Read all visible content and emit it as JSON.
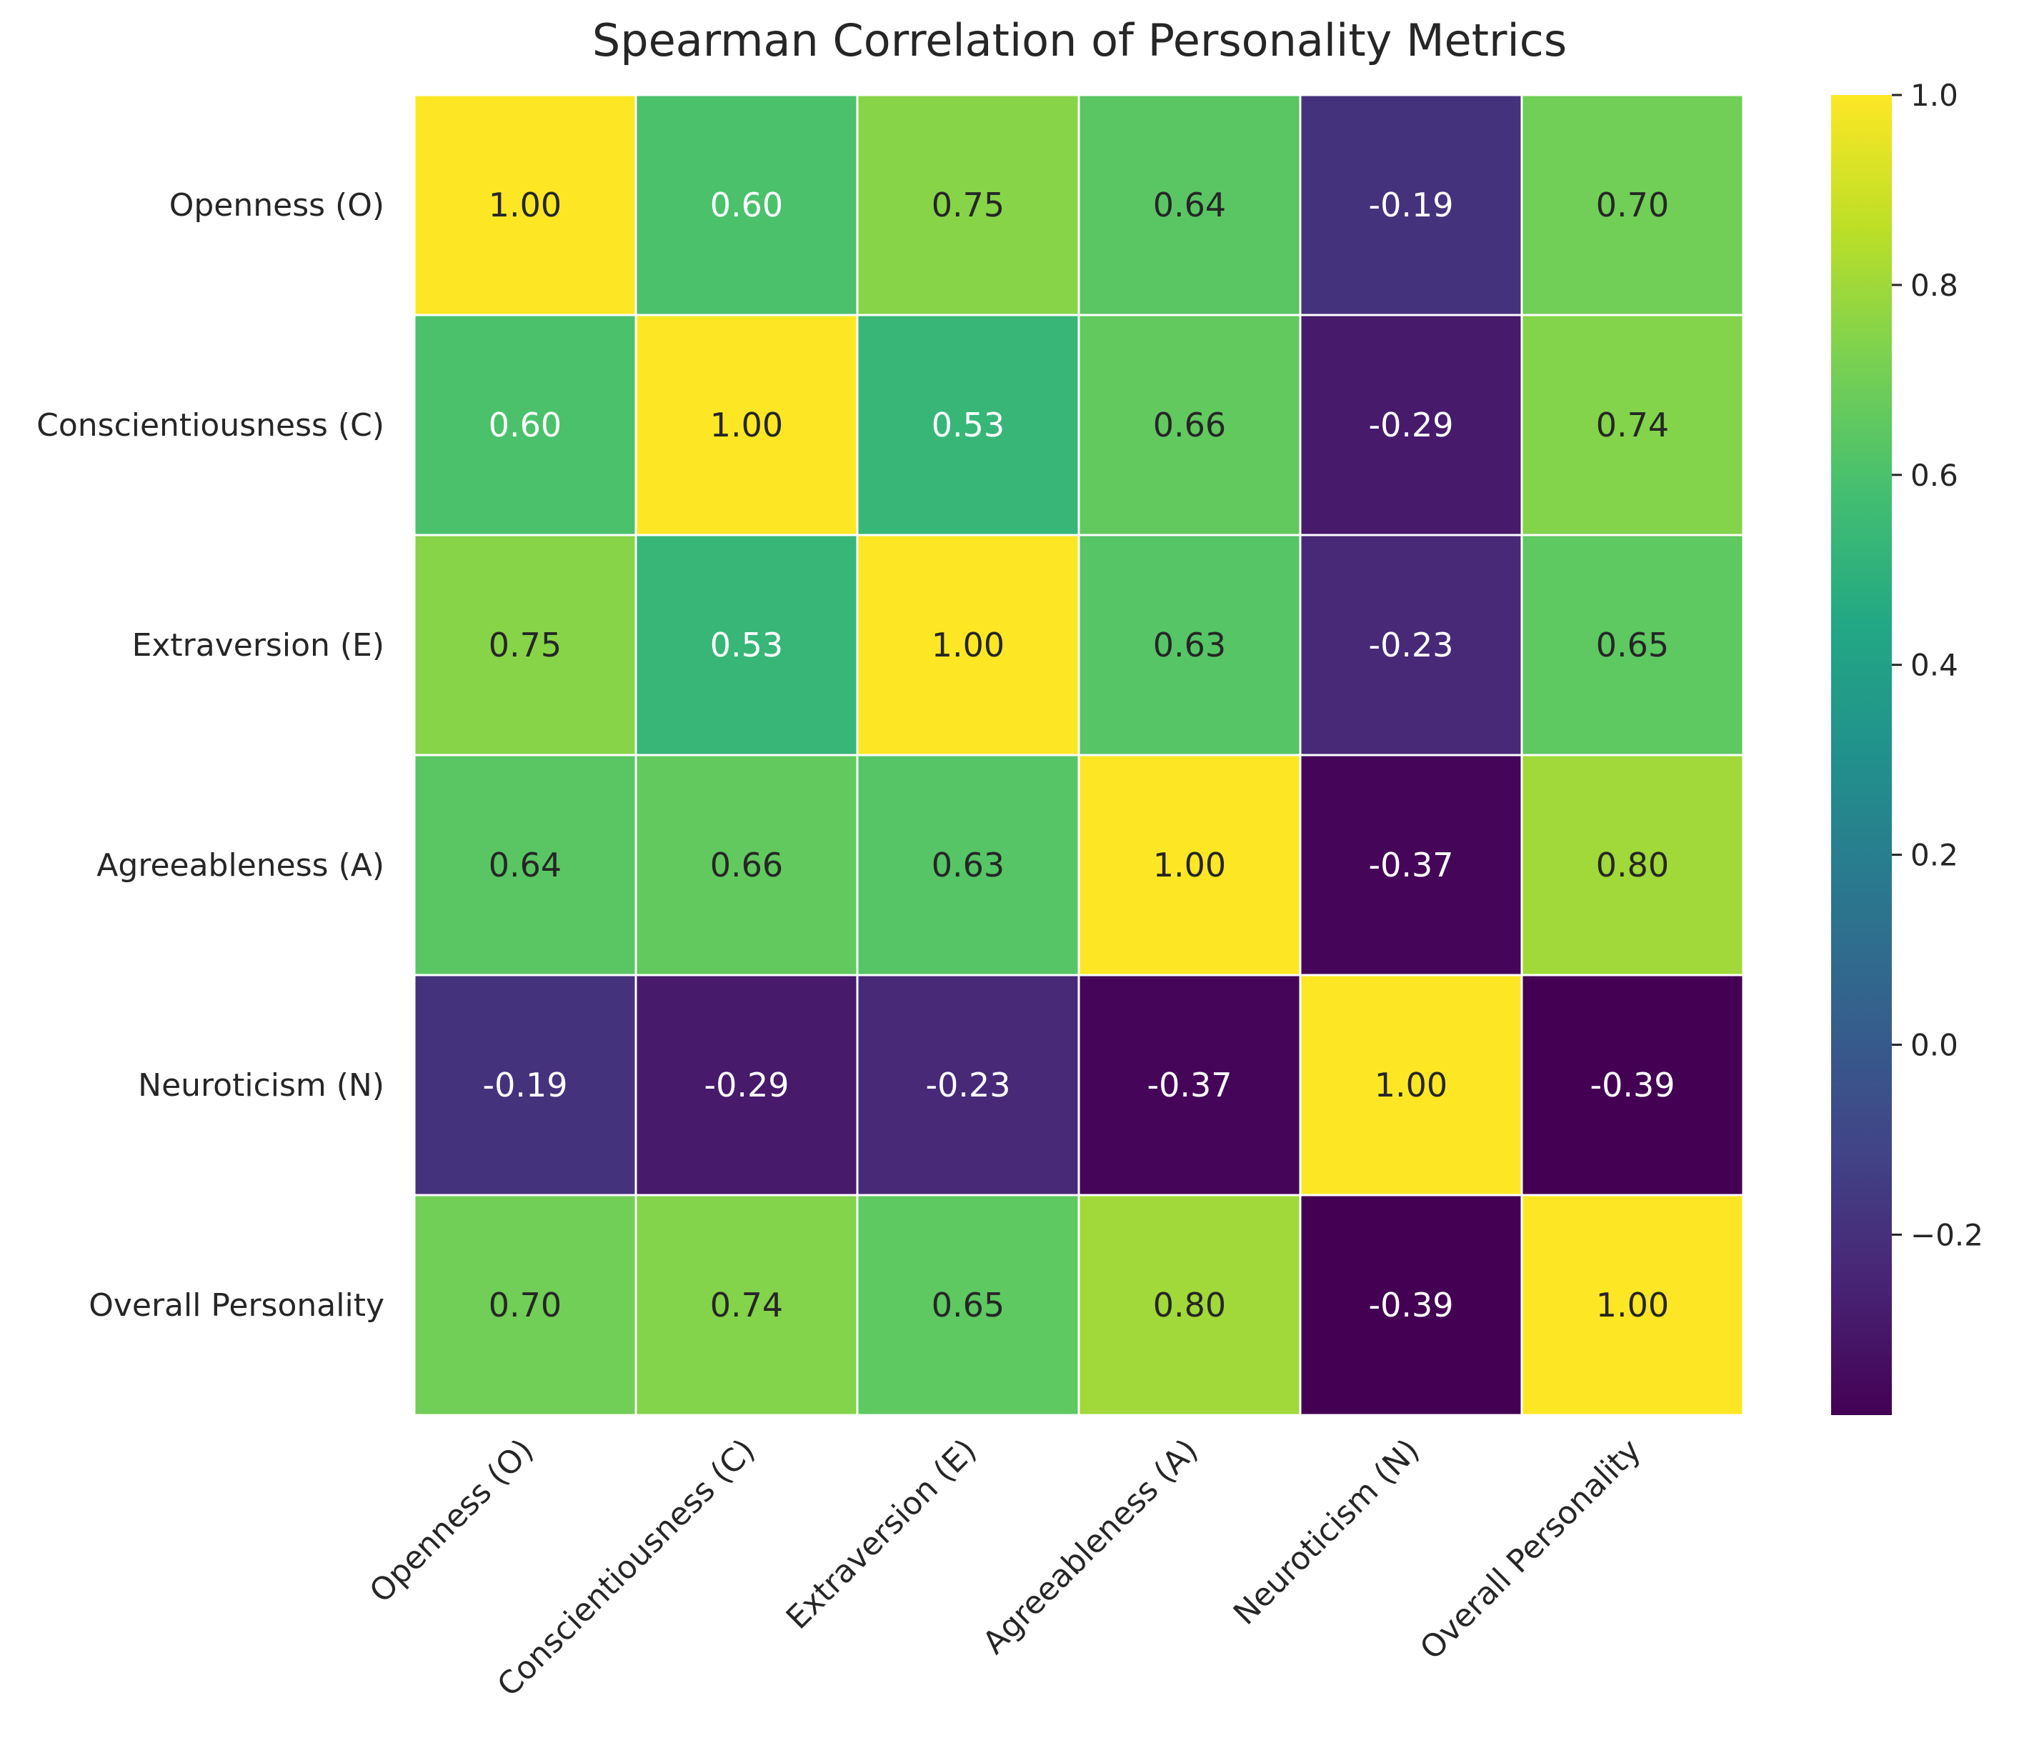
{
  "chart_data": {
    "type": "heatmap",
    "title": "Spearman Correlation of Personality Metrics",
    "xlabel": "",
    "ylabel": "",
    "row_labels": [
      "Openness (O)",
      "Conscientiousness (C)",
      "Extraversion (E)",
      "Agreeableness (A)",
      "Neuroticism (N)",
      "Overall Personality"
    ],
    "col_labels": [
      "Openness (O)",
      "Conscientiousness (C)",
      "Extraversion (E)",
      "Agreeableness (A)",
      "Neuroticism (N)",
      "Overall Personality"
    ],
    "values": [
      [
        1.0,
        0.6,
        0.75,
        0.64,
        -0.19,
        0.7
      ],
      [
        0.6,
        1.0,
        0.53,
        0.66,
        -0.29,
        0.74
      ],
      [
        0.75,
        0.53,
        1.0,
        0.63,
        -0.23,
        0.65
      ],
      [
        0.64,
        0.66,
        0.63,
        1.0,
        -0.37,
        0.8
      ],
      [
        -0.19,
        -0.29,
        -0.23,
        -0.37,
        1.0,
        -0.39
      ],
      [
        0.7,
        0.74,
        0.65,
        0.8,
        -0.39,
        1.0
      ]
    ],
    "annotation_format": "0.00",
    "colormap": "viridis",
    "colorbar": {
      "vmin": -0.39,
      "vmax": 1.0,
      "ticks": [
        -0.2,
        0.0,
        0.2,
        0.4,
        0.6,
        0.8,
        1.0
      ],
      "tick_labels": [
        "−0.2",
        "0.0",
        "0.2",
        "0.4",
        "0.6",
        "0.8",
        "1.0"
      ]
    },
    "grid_line_color": "#ffffff"
  }
}
